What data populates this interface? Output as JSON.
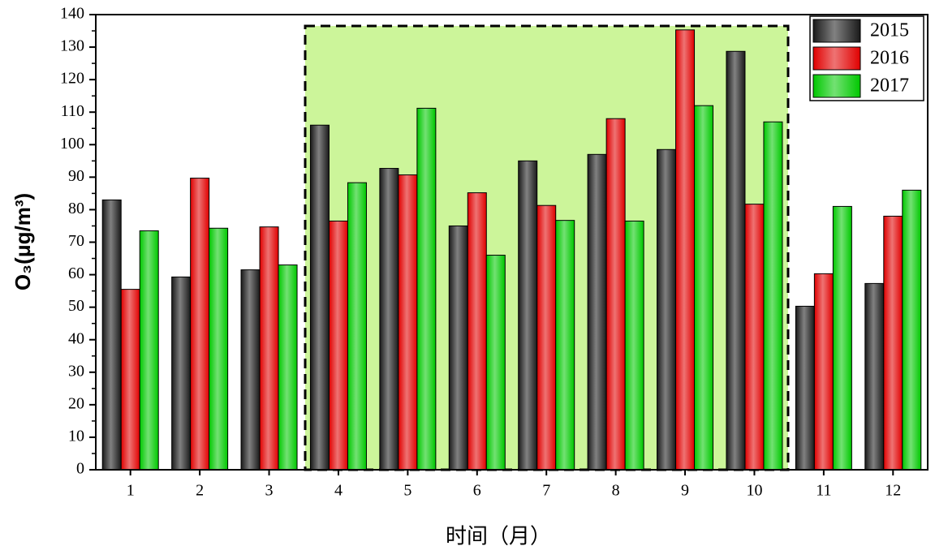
{
  "chart_data": {
    "type": "bar",
    "x_label": "时间（月）",
    "y_label": "O₃(μg/m³)",
    "categories": [
      "1",
      "2",
      "3",
      "4",
      "5",
      "6",
      "7",
      "8",
      "9",
      "10",
      "11",
      "12"
    ],
    "series": [
      {
        "name": "2015",
        "color": "#1a1a1a",
        "values": [
          83,
          59.3,
          61.5,
          106,
          92.7,
          75,
          95,
          97,
          98.5,
          128.7,
          50.3,
          57.3
        ]
      },
      {
        "name": "2016",
        "color": "#e00000",
        "values": [
          55.5,
          89.7,
          74.7,
          76.5,
          90.7,
          85.2,
          81.3,
          108,
          135.3,
          81.7,
          60.3,
          78
        ]
      },
      {
        "name": "2017",
        "color": "#00c800",
        "values": [
          73.5,
          74.3,
          63,
          88.3,
          111.2,
          66,
          76.7,
          76.5,
          112,
          107,
          81,
          86
        ]
      }
    ],
    "ylim": [
      0,
      140
    ],
    "yticks": [
      0,
      10,
      20,
      30,
      40,
      50,
      60,
      70,
      80,
      90,
      100,
      110,
      120,
      130,
      140
    ],
    "legend": "top-right"
  }
}
